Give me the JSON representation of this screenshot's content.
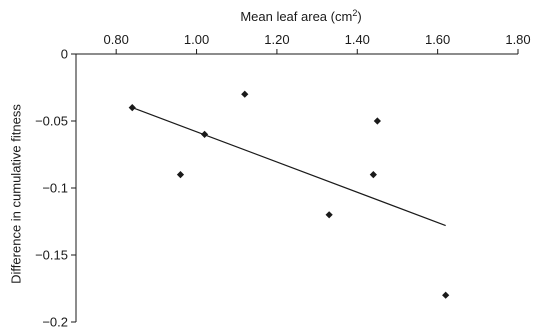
{
  "chart_data": {
    "type": "scatter",
    "title": "",
    "xlabel_main": "Mean leaf area (cm",
    "xlabel_sup": "2",
    "xlabel_tail": ")",
    "ylabel": "Difference in cumulative fitness",
    "xlim": [
      0.7,
      1.8
    ],
    "ylim": [
      -0.2,
      0
    ],
    "x_ticks": [
      0.8,
      1.0,
      1.2,
      1.4,
      1.6,
      1.8
    ],
    "x_tick_labels": [
      "0.80",
      "1.00",
      "1.20",
      "1.40",
      "1.60",
      "1.80"
    ],
    "y_ticks": [
      0,
      -0.05,
      -0.1,
      -0.15,
      -0.2
    ],
    "y_tick_labels": [
      "0",
      "−0.05",
      "−0.1",
      "−0.15",
      "−0.2"
    ],
    "x_axis_position": "top",
    "grid": false,
    "marker": "diamond",
    "color": "#1a1a1a",
    "points": [
      {
        "x": 0.84,
        "y": -0.04
      },
      {
        "x": 0.96,
        "y": -0.09
      },
      {
        "x": 1.02,
        "y": -0.06
      },
      {
        "x": 1.12,
        "y": -0.03
      },
      {
        "x": 1.33,
        "y": -0.12
      },
      {
        "x": 1.44,
        "y": -0.09
      },
      {
        "x": 1.45,
        "y": -0.05
      },
      {
        "x": 1.62,
        "y": -0.18
      }
    ],
    "trendline": {
      "x": [
        0.84,
        1.62
      ],
      "y": [
        -0.04,
        -0.128
      ]
    }
  }
}
